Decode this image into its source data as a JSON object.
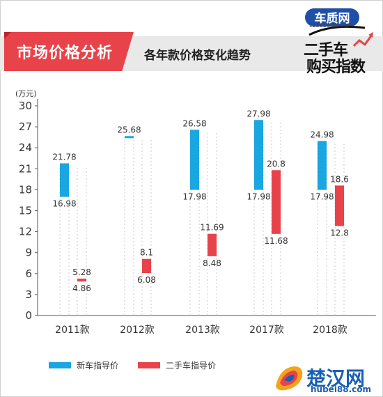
{
  "header": {
    "title": "市场价格分析",
    "subtitle": "各年款价格变化趋势",
    "brand_logo_text": "车质网",
    "brand_url": "12365auto.com",
    "brand_line1": "二手车",
    "brand_line2": "购买指数"
  },
  "watermark": {
    "text": "楚汉网",
    "url": "hubei88.com"
  },
  "colors": {
    "new_car": "#19a6e1",
    "used_car": "#e8434a",
    "accent": "#e8434a"
  },
  "chart_data": {
    "type": "bar",
    "unit": "(万元)",
    "ylim": [
      0,
      30
    ],
    "yticks": [
      0,
      3,
      6,
      9,
      12,
      15,
      18,
      21,
      24,
      27,
      30
    ],
    "grid": false,
    "legend_position": "bottom",
    "categories": [
      "2011款",
      "2012款",
      "2013款",
      "2017款",
      "2018款"
    ],
    "series": [
      {
        "name": "新车指导价",
        "color": "#19a6e1",
        "ranges": [
          [
            16.98,
            21.78
          ],
          [
            25.68,
            25.68
          ],
          [
            17.98,
            26.58
          ],
          [
            17.98,
            27.98
          ],
          [
            17.98,
            24.98
          ]
        ]
      },
      {
        "name": "二手车指导价",
        "color": "#e8434a",
        "ranges": [
          [
            4.86,
            5.28
          ],
          [
            6.08,
            8.1
          ],
          [
            8.48,
            11.69
          ],
          [
            11.68,
            20.8
          ],
          [
            12.8,
            18.6
          ]
        ]
      }
    ],
    "data_labels": {
      "new_car": [
        [
          "16.98",
          "21.78"
        ],
        [
          "",
          "25.68"
        ],
        [
          "17.98",
          "26.58"
        ],
        [
          "17.98",
          "27.98"
        ],
        [
          "17.98",
          "24.98"
        ]
      ],
      "used_car": [
        [
          "4.86",
          "5.28"
        ],
        [
          "6.08",
          "8.1"
        ],
        [
          "8.48",
          "11.69"
        ],
        [
          "11.68",
          "20.8"
        ],
        [
          "12.8",
          "18.6"
        ]
      ]
    }
  }
}
